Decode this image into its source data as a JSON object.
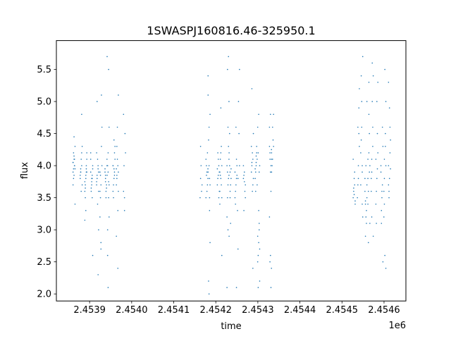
{
  "chart_data": {
    "type": "scatter",
    "title": "1SWASPJ160816.46-325950.1",
    "xlabel": "time",
    "ylabel": "flux",
    "x_offset_label": "1e6",
    "xlim": [
      2453821,
      2454652
    ],
    "ylim": [
      1.89,
      5.95
    ],
    "x_ticks": [
      2453900,
      2454000,
      2454100,
      2454200,
      2454300,
      2454400,
      2454500,
      2454600
    ],
    "x_tick_labels": [
      "2.4539",
      "2.4540",
      "2.4541",
      "2.4542",
      "2.4543",
      "2.4544",
      "2.4545",
      "2.4546"
    ],
    "y_ticks": [
      2.0,
      2.5,
      3.0,
      3.5,
      4.0,
      4.5,
      5.0,
      5.5
    ],
    "y_tick_labels": [
      "2.0",
      "2.5",
      "3.0",
      "3.5",
      "4.0",
      "4.5",
      "5.0",
      "5.5"
    ],
    "grid": false,
    "marker_color": "#1f77b4",
    "columns": [
      {
        "time": 2453863,
        "flux": [
          4.05,
          4.1,
          3.95,
          4.2,
          4.0,
          3.9,
          4.15,
          4.3,
          3.8,
          4.0,
          3.7,
          4.45,
          3.4,
          3.95,
          4.1,
          4.05,
          3.85
        ]
      },
      {
        "time": 2453880,
        "flux": [
          3.9,
          4.0,
          3.8,
          4.1,
          3.7,
          3.95,
          4.2,
          3.85,
          3.6,
          4.3,
          3.9,
          4.8
        ]
      },
      {
        "time": 2453891,
        "flux": [
          3.8,
          3.9,
          3.7,
          4.0,
          3.6,
          3.85,
          4.1,
          3.5,
          3.95,
          3.75,
          3.3,
          4.2,
          3.65,
          3.9,
          3.15
        ]
      },
      {
        "time": 2453905,
        "flux": [
          3.8,
          3.9,
          3.7,
          4.0,
          3.6,
          3.85,
          4.1,
          3.75,
          3.95,
          3.65,
          3.5,
          4.2,
          3.8,
          2.6
        ]
      },
      {
        "time": 2453919,
        "flux": [
          3.9,
          3.8,
          4.0,
          3.7,
          4.1,
          3.6,
          3.85,
          3.95,
          4.2,
          3.4,
          3.0,
          5.0,
          2.3,
          3.75
        ]
      },
      {
        "time": 2453927,
        "flux": [
          3.9,
          3.7,
          4.0,
          3.5,
          4.3,
          3.2,
          2.8,
          4.6,
          3.85,
          5.1,
          3.6,
          2.7
        ]
      },
      {
        "time": 2453939,
        "flux": [
          3.8,
          3.7,
          3.9,
          3.6,
          4.0,
          3.85,
          3.65,
          3.95,
          3.5,
          4.1,
          3.75
        ]
      },
      {
        "time": 2453944,
        "flux": [
          3.9,
          3.7,
          4.0,
          3.5,
          3.85,
          4.2,
          3.2,
          2.6,
          5.5,
          5.7,
          2.1,
          4.6,
          3.0,
          3.75
        ]
      },
      {
        "time": 2453958,
        "flux": [
          3.9,
          4.0,
          3.8,
          4.1,
          3.7,
          4.2,
          3.6,
          3.95,
          4.3,
          3.5,
          3.85,
          4.0,
          4.4
        ]
      },
      {
        "time": 2453966,
        "flux": [
          3.9,
          3.8,
          4.0,
          3.7,
          4.1,
          3.6,
          4.3,
          3.3,
          2.9,
          4.6,
          5.1,
          3.85,
          2.4,
          3.95
        ]
      },
      {
        "time": 2453983,
        "flux": [
          3.6,
          3.5,
          4.2,
          4.0,
          4.5,
          4.8,
          3.3
        ]
      },
      {
        "time": 2454165,
        "flux": [
          3.8,
          3.6,
          3.5,
          4.0,
          3.7,
          4.3
        ]
      },
      {
        "time": 2454179,
        "flux": [
          3.9,
          3.8,
          4.0,
          3.7,
          4.1,
          3.6,
          3.95,
          3.85,
          4.2,
          3.5
        ]
      },
      {
        "time": 2454184,
        "flux": [
          3.8,
          3.9,
          4.0,
          3.7,
          4.4,
          3.5,
          5.1,
          4.6,
          2.8,
          2.2,
          3.3,
          5.4,
          2.0,
          4.8
        ]
      },
      {
        "time": 2454206,
        "flux": [
          3.9,
          3.8,
          4.0,
          3.7,
          4.1,
          3.6,
          4.2,
          3.5,
          3.95,
          3.85
        ]
      },
      {
        "time": 2454212,
        "flux": [
          3.9,
          3.8,
          4.0,
          4.1,
          3.7,
          3.6,
          4.2,
          3.5,
          3.85,
          4.3,
          3.4,
          4.9,
          2.6
        ]
      },
      {
        "time": 2454229,
        "flux": [
          3.9,
          3.8,
          4.0,
          3.7,
          4.1,
          3.5,
          4.3,
          3.2,
          3.0,
          5.0,
          5.5,
          5.7,
          2.1,
          4.6,
          3.85
        ]
      },
      {
        "time": 2454234,
        "flux": [
          3.9,
          3.8,
          4.0,
          3.7,
          4.2,
          3.5,
          3.95,
          4.5,
          3.1,
          2.9,
          3.6
        ]
      },
      {
        "time": 2454248,
        "flux": [
          3.8,
          3.9,
          3.7,
          4.0,
          3.6,
          4.1,
          3.5,
          4.6,
          3.85,
          3.4,
          2.1
        ]
      },
      {
        "time": 2454254,
        "flux": [
          4.0,
          3.8,
          4.5,
          3.3,
          5.0,
          5.5,
          2.7
        ]
      },
      {
        "time": 2454268,
        "flux": [
          3.8,
          3.9,
          3.7,
          3.85,
          3.6,
          4.0,
          3.75,
          3.5,
          3.3
        ]
      },
      {
        "time": 2454287,
        "flux": [
          4.0,
          4.1,
          3.9,
          4.2,
          3.8,
          4.05,
          3.7,
          4.3,
          3.6,
          4.5,
          5.2,
          2.4
        ]
      },
      {
        "time": 2454296,
        "flux": [
          4.0,
          4.1,
          3.9,
          4.2,
          3.8,
          4.05,
          3.7,
          3.6,
          4.3,
          3.95,
          4.15
        ]
      },
      {
        "time": 2454302,
        "flux": [
          3.0,
          2.9,
          2.8,
          2.7,
          2.6,
          3.1,
          2.5,
          3.3,
          4.0,
          4.2,
          3.9,
          4.6,
          4.8,
          2.2,
          2.1
        ]
      },
      {
        "time": 2454330,
        "flux": [
          4.1,
          4.2,
          4.0,
          4.3,
          3.9,
          4.25,
          4.1,
          3.6,
          3.2,
          2.6,
          2.4,
          2.5,
          2.1,
          4.6,
          4.8
        ]
      },
      {
        "time": 2454335,
        "flux": [
          4.2,
          4.1,
          4.3,
          4.0,
          4.4,
          3.9,
          4.6,
          4.8
        ]
      },
      {
        "time": 2454529,
        "flux": [
          3.6,
          3.7,
          3.5,
          3.8,
          3.4,
          3.65,
          3.9,
          4.1,
          3.55,
          3.45
        ]
      },
      {
        "time": 2454539,
        "flux": [
          3.8,
          4.3,
          4.6,
          4.9,
          3.5,
          4.0,
          5.2,
          3.7,
          4.5
        ]
      },
      {
        "time": 2454547,
        "flux": [
          4.0,
          3.7,
          4.6,
          5.7,
          5.4,
          3.4,
          4.2,
          5.0,
          3.2,
          4.4,
          3.9
        ]
      },
      {
        "time": 2454557,
        "flux": [
          3.5,
          3.4,
          3.3,
          3.6,
          3.2,
          3.7,
          3.45,
          3.1,
          3.8,
          4.0,
          5.0,
          2.9
        ]
      },
      {
        "time": 2454564,
        "flux": [
          3.8,
          4.2,
          4.0,
          3.6,
          4.5,
          3.4,
          4.8,
          3.1,
          2.8,
          3.9,
          4.1,
          5.3
        ]
      },
      {
        "time": 2454572,
        "flux": [
          3.9,
          4.3,
          3.6,
          5.6,
          5.4,
          3.2,
          4.6,
          3.8,
          5.0,
          2.9,
          4.1
        ]
      },
      {
        "time": 2454583,
        "flux": [
          3.8,
          4.2,
          3.6,
          4.5,
          3.4,
          5.0,
          5.3,
          3.1,
          3.95,
          4.1
        ]
      },
      {
        "time": 2454595,
        "flux": [
          3.7,
          4.0,
          3.5,
          4.3,
          3.3,
          4.6,
          3.9,
          3.6,
          2.5,
          3.1
        ]
      },
      {
        "time": 2454602,
        "flux": [
          4.0,
          3.8,
          4.3,
          3.6,
          5.5,
          5.0,
          3.4,
          4.5,
          3.2,
          2.6,
          2.4,
          4.1
        ]
      },
      {
        "time": 2454613,
        "flux": [
          4.0,
          3.8,
          4.4,
          3.6,
          4.6,
          3.7,
          4.9,
          3.95,
          3.5,
          4.2,
          5.3
        ]
      }
    ]
  }
}
